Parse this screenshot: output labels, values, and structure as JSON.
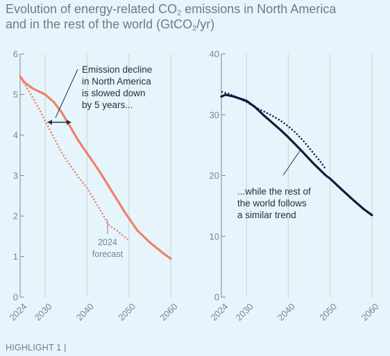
{
  "header": {
    "title_line1_pre": "Evolution of energy-related CO",
    "title_line1_sub": "2",
    "title_line1_post": " emissions in North America",
    "title_line2_pre": "and in the rest of the world (GtCO",
    "title_line2_sub": "2",
    "title_line2_post": "/yr)"
  },
  "footer": {
    "label": "HIGHLIGHT 1 |"
  },
  "colors": {
    "north_america": "#f08068",
    "rest_of_world": "#0d1b3f",
    "gridline": "#cdd7dd",
    "axis": "#7b868e"
  },
  "chart_data": [
    {
      "type": "line",
      "panel": "left",
      "xlim": [
        2024,
        2060
      ],
      "ylim": [
        0,
        6
      ],
      "x_ticks": [
        "2024",
        "2030",
        "2040",
        "2050",
        "2060"
      ],
      "y_ticks": [
        "0",
        "1",
        "2",
        "3",
        "4",
        "5",
        "6"
      ],
      "grid": "vertical",
      "series": [
        {
          "style": "solid",
          "x": [
            2024,
            2025,
            2027,
            2030,
            2032,
            2034,
            2036,
            2038,
            2040,
            2043,
            2046,
            2049,
            2050,
            2052,
            2055,
            2058,
            2060
          ],
          "values": [
            5.45,
            5.3,
            5.15,
            5.0,
            4.82,
            4.55,
            4.2,
            3.85,
            3.55,
            3.1,
            2.6,
            2.1,
            1.95,
            1.65,
            1.35,
            1.1,
            0.95
          ]
        },
        {
          "style": "dotted",
          "x": [
            2024,
            2026,
            2028,
            2030,
            2032,
            2034,
            2036,
            2038,
            2040,
            2042,
            2044,
            2045,
            2047,
            2050
          ],
          "values": [
            5.45,
            5.1,
            4.75,
            4.35,
            3.95,
            3.55,
            3.25,
            2.95,
            2.7,
            2.35,
            2.0,
            1.8,
            1.65,
            1.4
          ]
        }
      ],
      "annotations": {
        "emission_decline": [
          "Emission decline",
          "in North America",
          "is slowed down",
          "by 5 years..."
        ],
        "forecast": [
          "2024",
          "forecast"
        ]
      }
    },
    {
      "type": "line",
      "panel": "right",
      "xlim": [
        2024,
        2060
      ],
      "ylim": [
        0,
        40
      ],
      "x_ticks": [
        "2024",
        "2030",
        "2040",
        "2050",
        "2060"
      ],
      "y_ticks": [
        "0",
        "10",
        "20",
        "30",
        "40"
      ],
      "grid": "vertical",
      "series": [
        {
          "style": "solid",
          "x": [
            2024,
            2025,
            2027,
            2030,
            2032,
            2034,
            2036,
            2038,
            2040,
            2043,
            2046,
            2049,
            2050,
            2052,
            2055,
            2058,
            2060
          ],
          "values": [
            33.0,
            33.3,
            33.0,
            32.3,
            31.3,
            30.0,
            28.8,
            27.6,
            26.3,
            24.2,
            22.0,
            20.0,
            19.5,
            18.2,
            16.3,
            14.5,
            13.5
          ]
        },
        {
          "style": "dotted",
          "x": [
            2024,
            2026,
            2028,
            2030,
            2032,
            2034,
            2036,
            2038,
            2040,
            2042,
            2044,
            2046,
            2048,
            2049
          ],
          "values": [
            33.8,
            33.4,
            32.8,
            32.1,
            31.3,
            30.6,
            29.9,
            29.1,
            28.1,
            26.9,
            25.4,
            23.7,
            22.0,
            21.0
          ]
        }
      ],
      "annotations": {
        "rest_of_world": [
          "...while the rest of",
          "the world  follows",
          "a similar trend"
        ]
      }
    }
  ]
}
